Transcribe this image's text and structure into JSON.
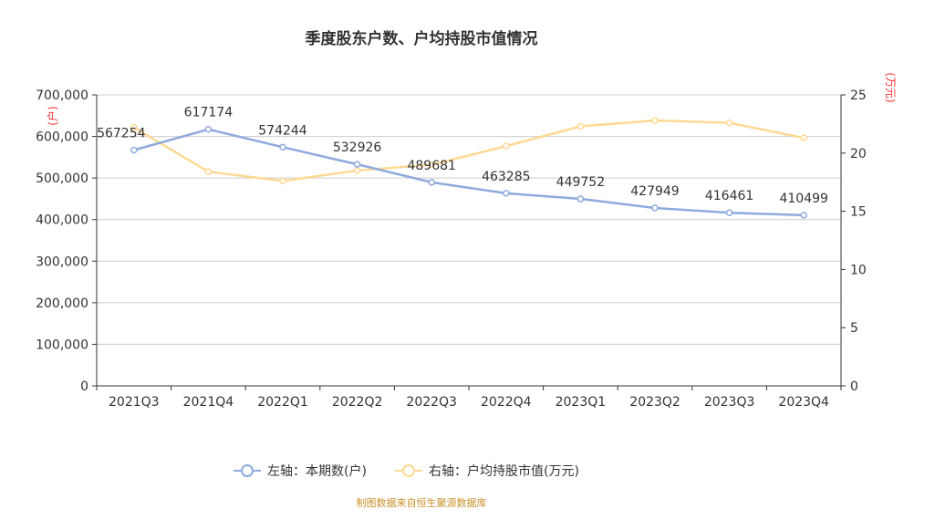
{
  "chart_data": {
    "type": "line",
    "title": "季度股东户数、户均持股市值情况",
    "categories": [
      "2021Q3",
      "2021Q4",
      "2022Q1",
      "2022Q2",
      "2022Q3",
      "2022Q4",
      "2023Q1",
      "2023Q2",
      "2023Q3",
      "2023Q4"
    ],
    "series": [
      {
        "name": "左轴：本期数(户)",
        "axis": "left",
        "color": "#8faadc",
        "values": [
          567254,
          617174,
          574244,
          532926,
          489681,
          463285,
          449752,
          427949,
          416461,
          410499
        ],
        "labels": [
          "567254",
          "617174",
          "574244",
          "532926",
          "489681",
          "463285",
          "449752",
          "427949",
          "416461",
          "410499"
        ]
      },
      {
        "name": "右轴：户均持股市值(万元)",
        "axis": "right",
        "color": "#ffd993",
        "values": [
          22.2,
          18.4,
          17.6,
          18.5,
          19.0,
          20.6,
          22.3,
          22.8,
          22.6,
          21.3
        ]
      }
    ],
    "left_axis": {
      "label": "(户)",
      "min": 0,
      "max": 700000,
      "ticks": [
        "0",
        "100,000",
        "200,000",
        "300,000",
        "400,000",
        "500,000",
        "600,000",
        "700,000"
      ]
    },
    "right_axis": {
      "label": "(万元)",
      "min": 0,
      "max": 25,
      "ticks": [
        "0",
        "5",
        "10",
        "15",
        "20",
        "25"
      ]
    },
    "grid": true,
    "legend": "bottom-center",
    "source": "制图数据来自恒生聚源数据库"
  }
}
